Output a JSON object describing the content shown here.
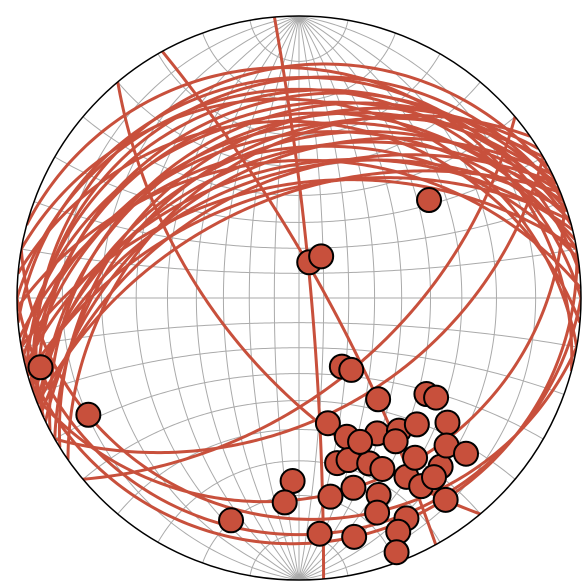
{
  "chart_data": {
    "type": "stereonet",
    "projection": "equal-angle",
    "grid": true,
    "grid_interval": 10,
    "grid_color": "#aaaaaa",
    "plane_color": "#c8503c",
    "pole_color": "#c8503c",
    "planes": {
      "dip_direction": [
        335,
        340,
        345,
        338,
        342,
        350,
        332,
        336,
        344,
        348,
        330,
        338,
        352,
        340,
        334,
        346,
        342,
        336,
        350,
        344,
        338,
        355,
        360,
        10,
        5,
        328,
        325,
        358,
        15,
        61,
        230,
        85,
        180,
        190,
        170,
        160,
        150,
        140
      ],
      "dip": [
        12,
        15,
        18,
        20,
        22,
        24,
        25,
        27,
        28,
        30,
        32,
        33,
        34,
        36,
        38,
        40,
        42,
        44,
        46,
        48,
        50,
        14,
        17,
        20,
        26,
        29,
        35,
        38,
        12,
        80,
        60,
        85,
        10,
        14,
        8,
        20,
        45,
        55
      ]
    },
    "poles": {
      "trend": [
        53,
        16,
        28,
        255,
        241,
        148,
        144,
        142,
        127,
        126,
        167,
        161,
        150,
        143,
        137,
        130,
        167,
        163,
        157,
        154,
        149,
        144,
        140,
        135,
        133,
        164,
        158,
        147,
        143,
        182,
        184,
        171,
        160,
        154,
        144,
        197,
        175,
        167,
        157,
        159,
        157,
        146
      ],
      "plunge": [
        30,
        75,
        71,
        3,
        9,
        58,
        55,
        41,
        31,
        28,
        41,
        35,
        32,
        29,
        27,
        21,
        28,
        28,
        25,
        22,
        17,
        20,
        14,
        17,
        12,
        20,
        16,
        13,
        13,
        24,
        18,
        19,
        12,
        8,
        7,
        11,
        10,
        8,
        6,
        2,
        32,
        27
      ]
    }
  }
}
